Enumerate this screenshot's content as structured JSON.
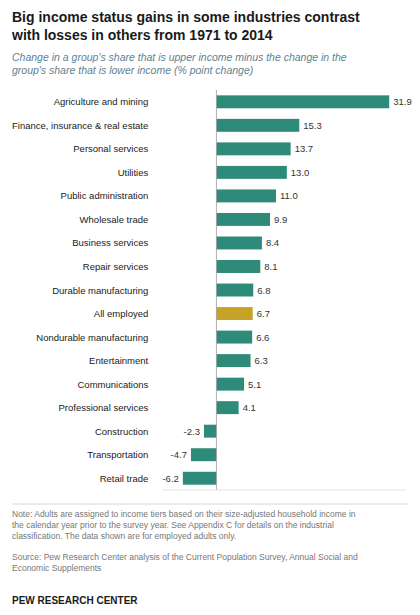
{
  "chart_data": {
    "type": "bar",
    "orientation": "horizontal",
    "title": "Big income status gains in some industries contrast\nwith losses in others from 1971 to 2014",
    "subtitle": "Change in a group's share that is upper income minus the change in the\ngroup's share that is lower income (% point change)",
    "categories": [
      "Agriculture and mining",
      "Finance, insurance & real estate",
      "Personal services",
      "Utilities",
      "Public administration",
      "Wholesale trade",
      "Business services",
      "Repair services",
      "Durable manufacturing",
      "All employed",
      "Nondurable manufacturing",
      "Entertainment",
      "Communications",
      "Professional services",
      "Construction",
      "Transportation",
      "Retail trade"
    ],
    "values": [
      31.9,
      15.3,
      13.7,
      13.0,
      11.0,
      9.9,
      8.4,
      8.1,
      6.8,
      6.7,
      6.6,
      6.3,
      5.1,
      4.1,
      -2.3,
      -4.7,
      -6.2
    ],
    "value_labels": [
      "31.9",
      "15.3",
      "13.7",
      "13.0",
      "11.0",
      "9.9",
      "8.4",
      "8.1",
      "6.8",
      "6.7",
      "6.6",
      "6.3",
      "5.1",
      "4.1",
      "-2.3",
      "-4.7",
      "-6.2"
    ],
    "colors": [
      "#2e8b7a",
      "#2e8b7a",
      "#2e8b7a",
      "#2e8b7a",
      "#2e8b7a",
      "#2e8b7a",
      "#2e8b7a",
      "#2e8b7a",
      "#2e8b7a",
      "#c8a227",
      "#2e8b7a",
      "#2e8b7a",
      "#2e8b7a",
      "#2e8b7a",
      "#2e8b7a",
      "#2e8b7a",
      "#2e8b7a"
    ],
    "xlim": [
      -10,
      35
    ],
    "grid": false,
    "data_labels": true,
    "tick_labels": "y",
    "annotations": [
      "Note: Adults are assigned to income tiers based on their size-adjusted household income in\nthe calendar year prior to the survey year. See Appendix C for details on the industrial\nclassification. The data shown are for employed adults only.",
      "Source: Pew Research Center analysis of the Current Population Survey, Annual Social and\nEconomic Supplements",
      "PEW RESEARCH CENTER"
    ]
  }
}
